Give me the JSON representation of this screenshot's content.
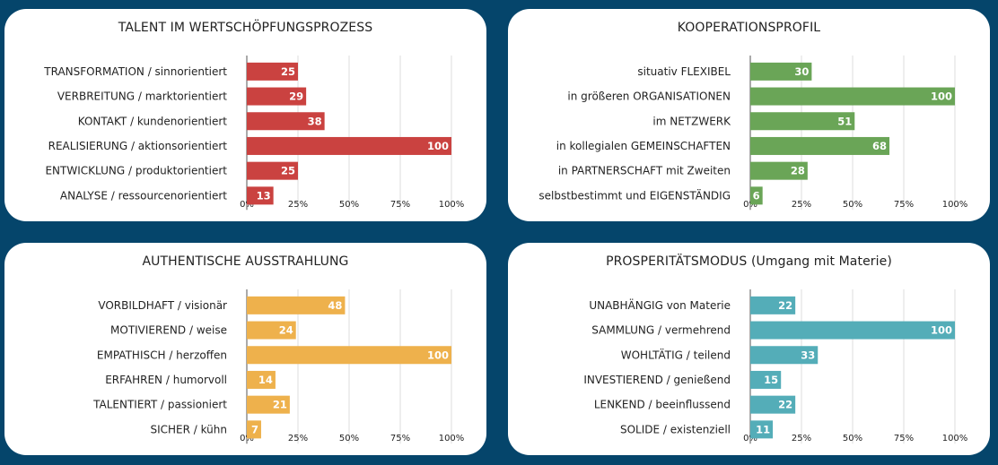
{
  "chart_data": [
    {
      "type": "bar",
      "title": "TALENT IM WERTSCHÖPFUNGSPROZESS",
      "categories": [
        "TRANSFORMATION / sinnorientiert",
        "VERBREITUNG / marktorientiert",
        "KONTAKT / kundenorientiert",
        "REALISIERUNG / aktionsorientiert",
        "ENTWICKLUNG / produktorientiert",
        "ANALYSE / ressourcenorientiert"
      ],
      "values": [
        25,
        29,
        38,
        100,
        25,
        13
      ],
      "color": "#ca4240",
      "xlim": [
        0,
        100
      ],
      "ticks": [
        "0%",
        "25%",
        "50%",
        "75%",
        "100%"
      ],
      "grid": true
    },
    {
      "type": "bar",
      "title": "KOOPERATIONSPROFIL",
      "categories": [
        "situativ FLEXIBEL",
        "in größeren ORGANISATIONEN",
        "im NETZWERK",
        "in kollegialen GEMEINSCHAFTEN",
        "in PARTNERSCHAFT mit Zweiten",
        "selbstbestimmt und EIGENSTÄNDIG"
      ],
      "values": [
        30,
        100,
        51,
        68,
        28,
        6
      ],
      "color": "#6aa557",
      "xlim": [
        0,
        100
      ],
      "ticks": [
        "0%",
        "25%",
        "50%",
        "75%",
        "100%"
      ],
      "grid": true
    },
    {
      "type": "bar",
      "title": "AUTHENTISCHE AUSSTRAHLUNG",
      "categories": [
        "VORBILDHAFT / visionär",
        "MOTIVIEREND / weise",
        "EMPATHISCH / herzoffen",
        "ERFAHREN / humorvoll",
        "TALENTIERT / passioniert",
        "SICHER / kühn"
      ],
      "values": [
        48,
        24,
        100,
        14,
        21,
        7
      ],
      "color": "#eeb14c",
      "xlim": [
        0,
        100
      ],
      "ticks": [
        "0%",
        "25%",
        "50%",
        "75%",
        "100%"
      ],
      "grid": true
    },
    {
      "type": "bar",
      "title": "PROSPERITÄTSMODUS (Umgang mit Materie)",
      "categories": [
        "UNABHÄNGIG von Materie",
        "SAMMLUNG / vermehrend",
        "WOHLTÄTIG / teilend",
        "INVESTIEREND / genießend",
        "LENKEND / beeinflussend",
        "SOLIDE / existenziell"
      ],
      "values": [
        22,
        100,
        33,
        15,
        22,
        11
      ],
      "color": "#54adb8",
      "xlim": [
        0,
        100
      ],
      "ticks": [
        "0%",
        "25%",
        "50%",
        "75%",
        "100%"
      ],
      "grid": true
    }
  ]
}
